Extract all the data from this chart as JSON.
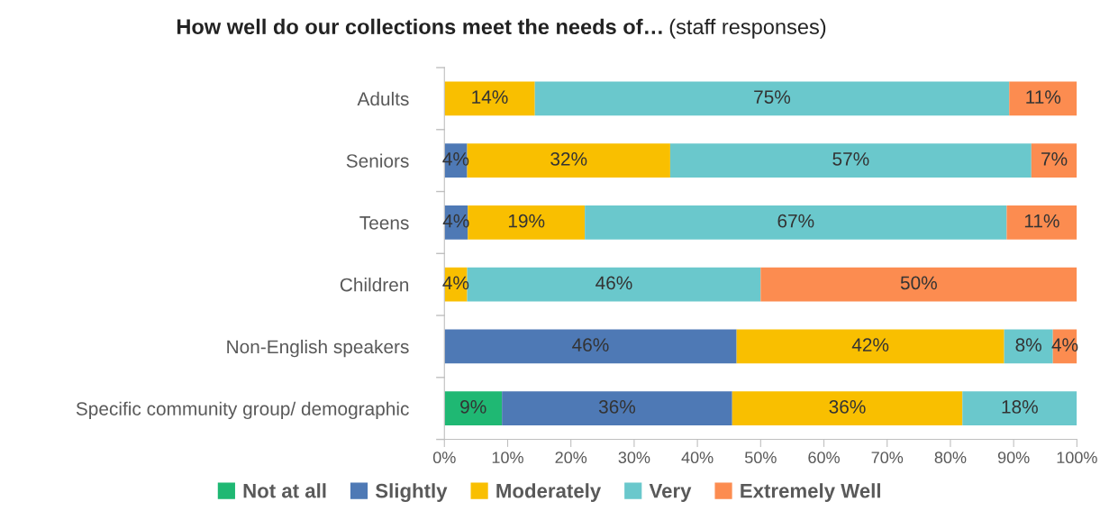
{
  "chart_data": {
    "type": "bar",
    "orientation": "horizontal",
    "stacked": true,
    "title": "How well do our collections meet the needs of…",
    "subtitle": "(staff responses)",
    "categories": [
      "Adults",
      "Seniors",
      "Teens",
      "Children",
      "Non-English speakers",
      "Specific community group/ demographic"
    ],
    "series": [
      {
        "name": "Not at all",
        "color": "#1fb873",
        "values": [
          null,
          null,
          null,
          null,
          null,
          9.1
        ],
        "value_labels": [
          null,
          null,
          null,
          null,
          null,
          "9%"
        ]
      },
      {
        "name": "Slightly",
        "color": "#4e79b5",
        "values": [
          null,
          3.6,
          3.7,
          null,
          46.2,
          36.4
        ],
        "value_labels": [
          null,
          "4%",
          "4%",
          null,
          "46%",
          "36%"
        ]
      },
      {
        "name": "Moderately",
        "color": "#f9bf00",
        "values": [
          14.3,
          32.1,
          18.5,
          3.6,
          42.3,
          36.4
        ],
        "value_labels": [
          "14%",
          "32%",
          "19%",
          "4%",
          "42%",
          "36%"
        ]
      },
      {
        "name": "Very",
        "color": "#6ac8cc",
        "values": [
          75.0,
          57.1,
          66.7,
          46.4,
          7.7,
          18.1
        ],
        "value_labels": [
          "75%",
          "57%",
          "67%",
          "46%",
          "8%",
          "18%"
        ]
      },
      {
        "name": "Extremely Well",
        "color": "#fc8c50",
        "values": [
          10.7,
          7.2,
          11.1,
          50.0,
          3.8,
          null
        ],
        "value_labels": [
          "11%",
          "7%",
          "11%",
          "50%",
          "4%",
          null
        ]
      }
    ],
    "xlim": [
      0,
      100
    ],
    "xticks": [
      {
        "value": 0,
        "label": "0%"
      },
      {
        "value": 10,
        "label": "10%"
      },
      {
        "value": 20,
        "label": "20%"
      },
      {
        "value": 30,
        "label": "30%"
      },
      {
        "value": 40,
        "label": "40%"
      },
      {
        "value": 50,
        "label": "50%"
      },
      {
        "value": 60,
        "label": "60%"
      },
      {
        "value": 70,
        "label": "70%"
      },
      {
        "value": 80,
        "label": "80%"
      },
      {
        "value": 90,
        "label": "90%"
      },
      {
        "value": 100,
        "label": "100%"
      }
    ],
    "grid": false,
    "legend": "bottom"
  }
}
